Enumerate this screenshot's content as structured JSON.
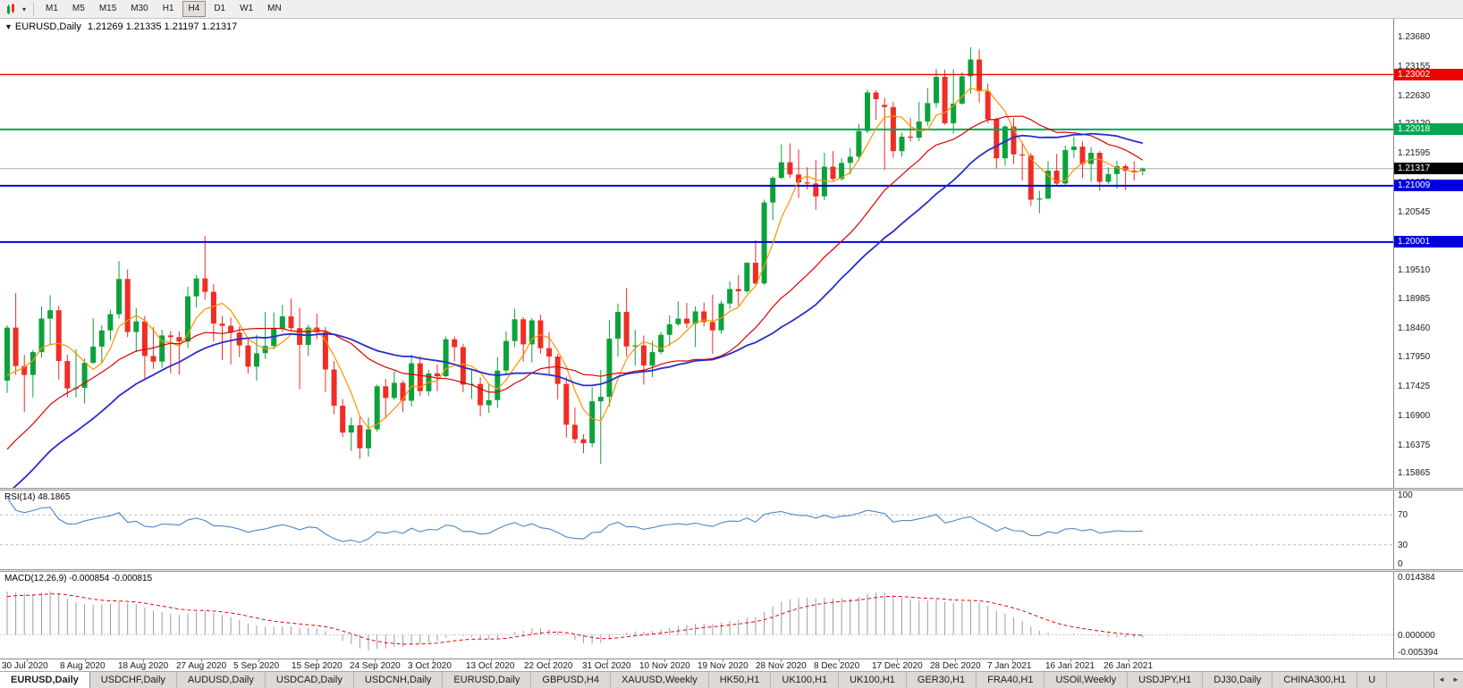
{
  "toolbar": {
    "dropdown_glyph": "▾",
    "timeframes": [
      "M1",
      "M5",
      "M15",
      "M30",
      "H1",
      "H4",
      "D1",
      "W1",
      "MN"
    ],
    "active_timeframe": "H4"
  },
  "main_chart": {
    "collapse_glyph": "▼",
    "title": "EURUSD,Daily",
    "ohlc_text": "1.21269 1.21335 1.21197 1.21317",
    "price_range": {
      "top": 1.24,
      "bottom": 1.156
    },
    "axis_labels": [
      "1.23680",
      "1.23155",
      "1.22630",
      "1.22120",
      "1.21595",
      "1.21070",
      "1.20545",
      "1.20020",
      "1.19510",
      "1.18985",
      "1.18460",
      "1.17950",
      "1.17425",
      "1.16900",
      "1.16375",
      "1.15865"
    ],
    "current_price": {
      "value": 1.21317,
      "label": "1.21317",
      "tag_color": "#000000",
      "line_color": "#ababab"
    },
    "hlines": [
      {
        "value": 1.23002,
        "label": "1.23002",
        "color": "#ee0000",
        "width": 1.4
      },
      {
        "value": 1.22018,
        "label": "1.22018",
        "color": "#00a651",
        "width": 2
      },
      {
        "value": 1.21009,
        "label": "1.21009",
        "color": "#0000dd",
        "width": 2
      },
      {
        "value": 1.20001,
        "label": "1.20001",
        "color": "#0000dd",
        "width": 2
      }
    ],
    "bull_color": "#0ca23a",
    "bear_color": "#ef2d24"
  },
  "chart_data": {
    "type": "candlestick",
    "title": "EURUSD Daily candlestick chart with SMA overlays, RSI(14) and MACD(12,26,9)",
    "symbol": "EURUSD",
    "period": "Daily",
    "ylim": [
      1.156,
      1.24
    ],
    "x_date_labels": [
      "30 Jul 2020",
      "8 Aug 2020",
      "18 Aug 2020",
      "27 Aug 2020",
      "5 Sep 2020",
      "15 Sep 2020",
      "24 Sep 2020",
      "3 Oct 2020",
      "13 Oct 2020",
      "22 Oct 2020",
      "31 Oct 2020",
      "10 Nov 2020",
      "19 Nov 2020",
      "28 Nov 2020",
      "8 Dec 2020",
      "17 Dec 2020",
      "28 Dec 2020",
      "7 Jan 2021",
      "16 Jan 2021",
      "26 Jan 2021"
    ],
    "ohlc": [
      [
        1.1752,
        1.1851,
        1.173,
        1.1847
      ],
      [
        1.1847,
        1.1909,
        1.1762,
        1.1778
      ],
      [
        1.1778,
        1.1798,
        1.1696,
        1.1762
      ],
      [
        1.1762,
        1.1807,
        1.1722,
        1.1803
      ],
      [
        1.1803,
        1.1885,
        1.1793,
        1.1863
      ],
      [
        1.1863,
        1.1905,
        1.1815,
        1.1878
      ],
      [
        1.1878,
        1.1886,
        1.1754,
        1.1787
      ],
      [
        1.1787,
        1.1798,
        1.1722,
        1.1738
      ],
      [
        1.1738,
        1.1808,
        1.1722,
        1.1739
      ],
      [
        1.1739,
        1.1792,
        1.1711,
        1.1784
      ],
      [
        1.1784,
        1.1864,
        1.1782,
        1.1813
      ],
      [
        1.1813,
        1.1851,
        1.1783,
        1.1842
      ],
      [
        1.1842,
        1.1879,
        1.1824,
        1.1871
      ],
      [
        1.1871,
        1.1966,
        1.1863,
        1.1934
      ],
      [
        1.1934,
        1.1951,
        1.183,
        1.1839
      ],
      [
        1.1839,
        1.1882,
        1.1803,
        1.1858
      ],
      [
        1.1858,
        1.1868,
        1.1753,
        1.1796
      ],
      [
        1.1796,
        1.1848,
        1.1773,
        1.1786
      ],
      [
        1.1786,
        1.1843,
        1.1775,
        1.1833
      ],
      [
        1.1833,
        1.1841,
        1.1765,
        1.183
      ],
      [
        1.183,
        1.184,
        1.1763,
        1.1822
      ],
      [
        1.1822,
        1.192,
        1.181,
        1.1903
      ],
      [
        1.1903,
        1.1941,
        1.1883,
        1.1935
      ],
      [
        1.1935,
        1.2011,
        1.1897,
        1.1911
      ],
      [
        1.1911,
        1.1925,
        1.1822,
        1.1854
      ],
      [
        1.1854,
        1.1868,
        1.1789,
        1.185
      ],
      [
        1.185,
        1.1865,
        1.1781,
        1.1838
      ],
      [
        1.1838,
        1.1849,
        1.1794,
        1.1815
      ],
      [
        1.1815,
        1.1827,
        1.1765,
        1.1777
      ],
      [
        1.1777,
        1.1834,
        1.1752,
        1.1801
      ],
      [
        1.1801,
        1.1875,
        1.1791,
        1.1814
      ],
      [
        1.1814,
        1.1874,
        1.1808,
        1.1845
      ],
      [
        1.1845,
        1.1888,
        1.1839,
        1.1867
      ],
      [
        1.1867,
        1.1899,
        1.1841,
        1.1846
      ],
      [
        1.1846,
        1.1882,
        1.1737,
        1.1816
      ],
      [
        1.1816,
        1.1852,
        1.1796,
        1.1847
      ],
      [
        1.1847,
        1.1872,
        1.1826,
        1.1839
      ],
      [
        1.1839,
        1.1848,
        1.1732,
        1.1772
      ],
      [
        1.1772,
        1.1787,
        1.1692,
        1.1707
      ],
      [
        1.1707,
        1.1719,
        1.1651,
        1.1659
      ],
      [
        1.1659,
        1.1686,
        1.1626,
        1.1672
      ],
      [
        1.1672,
        1.1689,
        1.1612,
        1.1631
      ],
      [
        1.1631,
        1.1686,
        1.1616,
        1.1665
      ],
      [
        1.1665,
        1.1745,
        1.1661,
        1.1742
      ],
      [
        1.1742,
        1.1755,
        1.1684,
        1.1721
      ],
      [
        1.1721,
        1.1769,
        1.1717,
        1.1748
      ],
      [
        1.1748,
        1.1752,
        1.1695,
        1.1716
      ],
      [
        1.1716,
        1.1798,
        1.1706,
        1.1783
      ],
      [
        1.1783,
        1.1796,
        1.1724,
        1.1733
      ],
      [
        1.1733,
        1.1771,
        1.1725,
        1.1765
      ],
      [
        1.1765,
        1.1781,
        1.1733,
        1.176
      ],
      [
        1.176,
        1.1831,
        1.1758,
        1.1826
      ],
      [
        1.1826,
        1.1831,
        1.1786,
        1.1812
      ],
      [
        1.1812,
        1.1818,
        1.1731,
        1.1745
      ],
      [
        1.1745,
        1.1772,
        1.1719,
        1.1746
      ],
      [
        1.1746,
        1.1758,
        1.1688,
        1.1708
      ],
      [
        1.1708,
        1.1746,
        1.1694,
        1.1717
      ],
      [
        1.1717,
        1.1794,
        1.1703,
        1.177
      ],
      [
        1.177,
        1.184,
        1.1762,
        1.1823
      ],
      [
        1.1823,
        1.1881,
        1.1812,
        1.1862
      ],
      [
        1.1862,
        1.1866,
        1.1786,
        1.1817
      ],
      [
        1.1817,
        1.1864,
        1.1785,
        1.186
      ],
      [
        1.186,
        1.187,
        1.18,
        1.181
      ],
      [
        1.181,
        1.1839,
        1.1763,
        1.1795
      ],
      [
        1.1795,
        1.18,
        1.1718,
        1.1746
      ],
      [
        1.1746,
        1.1759,
        1.165,
        1.1673
      ],
      [
        1.1673,
        1.1704,
        1.164,
        1.1647
      ],
      [
        1.1647,
        1.1656,
        1.1622,
        1.164
      ],
      [
        1.164,
        1.174,
        1.1633,
        1.1715
      ],
      [
        1.1715,
        1.1771,
        1.1603,
        1.1723
      ],
      [
        1.1723,
        1.186,
        1.1706,
        1.1827
      ],
      [
        1.1827,
        1.189,
        1.1795,
        1.1875
      ],
      [
        1.1875,
        1.1918,
        1.1795,
        1.1813
      ],
      [
        1.1813,
        1.1843,
        1.1779,
        1.1815
      ],
      [
        1.1815,
        1.1833,
        1.1745,
        1.1779
      ],
      [
        1.1779,
        1.1823,
        1.1758,
        1.1803
      ],
      [
        1.1803,
        1.1839,
        1.1799,
        1.1834
      ],
      [
        1.1834,
        1.1869,
        1.1814,
        1.1853
      ],
      [
        1.1853,
        1.1894,
        1.185,
        1.1863
      ],
      [
        1.1863,
        1.1891,
        1.1846,
        1.1854
      ],
      [
        1.1854,
        1.1885,
        1.1812,
        1.1876
      ],
      [
        1.1876,
        1.1892,
        1.1849,
        1.1857
      ],
      [
        1.1857,
        1.1906,
        1.18,
        1.1842
      ],
      [
        1.1842,
        1.1895,
        1.1836,
        1.189
      ],
      [
        1.189,
        1.193,
        1.1881,
        1.1916
      ],
      [
        1.1916,
        1.1941,
        1.1886,
        1.1912
      ],
      [
        1.1912,
        1.1964,
        1.1909,
        1.1963
      ],
      [
        1.1963,
        1.2003,
        1.1924,
        1.1926
      ],
      [
        1.1926,
        1.2076,
        1.1923,
        1.2071
      ],
      [
        1.2071,
        1.2118,
        1.204,
        1.2115
      ],
      [
        1.2115,
        1.2175,
        1.2113,
        1.2143
      ],
      [
        1.2143,
        1.2177,
        1.2115,
        1.2121
      ],
      [
        1.2121,
        1.2166,
        1.2079,
        1.2107
      ],
      [
        1.2107,
        1.2134,
        1.2094,
        1.2105
      ],
      [
        1.2105,
        1.2147,
        1.2058,
        1.2082
      ],
      [
        1.2082,
        1.216,
        1.2075,
        1.2135
      ],
      [
        1.2135,
        1.2163,
        1.211,
        1.2113
      ],
      [
        1.2113,
        1.215,
        1.211,
        1.2142
      ],
      [
        1.2142,
        1.2169,
        1.2121,
        1.2153
      ],
      [
        1.2153,
        1.2212,
        1.2146,
        1.2199
      ],
      [
        1.2199,
        1.2273,
        1.2195,
        1.2268
      ],
      [
        1.2268,
        1.2272,
        1.2219,
        1.2256
      ],
      [
        1.2246,
        1.2258,
        1.2129,
        1.2242
      ],
      [
        1.2242,
        1.2251,
        1.2151,
        1.2163
      ],
      [
        1.2163,
        1.2196,
        1.2153,
        1.2189
      ],
      [
        1.2189,
        1.2222,
        1.218,
        1.2187
      ],
      [
        1.2187,
        1.2251,
        1.2181,
        1.2216
      ],
      [
        1.2216,
        1.2276,
        1.2208,
        1.2249
      ],
      [
        1.2249,
        1.231,
        1.2241,
        1.2296
      ],
      [
        1.2296,
        1.2309,
        1.221,
        1.2213
      ],
      [
        1.2213,
        1.231,
        1.2194,
        1.2248
      ],
      [
        1.2248,
        1.2304,
        1.2246,
        1.2297
      ],
      [
        1.2297,
        1.2349,
        1.2266,
        1.2327
      ],
      [
        1.2327,
        1.2345,
        1.225,
        1.227
      ],
      [
        1.227,
        1.2284,
        1.2213,
        1.222
      ],
      [
        1.222,
        1.2223,
        1.2132,
        1.215
      ],
      [
        1.215,
        1.221,
        1.2137,
        1.2207
      ],
      [
        1.2207,
        1.2222,
        1.214,
        1.2157
      ],
      [
        1.2157,
        1.2178,
        1.211,
        1.2155
      ],
      [
        1.2155,
        1.216,
        1.2065,
        1.2076
      ],
      [
        1.2076,
        1.2092,
        1.2052,
        1.2078
      ],
      [
        1.2078,
        1.2145,
        1.2077,
        1.2128
      ],
      [
        1.2128,
        1.2158,
        1.2101,
        1.2105
      ],
      [
        1.2105,
        1.2173,
        1.2103,
        1.2165
      ],
      [
        1.2165,
        1.2189,
        1.2151,
        1.2171
      ],
      [
        1.2171,
        1.218,
        1.2115,
        1.214
      ],
      [
        1.214,
        1.217,
        1.2108,
        1.216
      ],
      [
        1.216,
        1.2163,
        1.2092,
        1.2108
      ],
      [
        1.2108,
        1.2134,
        1.2104,
        1.2122
      ],
      [
        1.2122,
        1.2146,
        1.2096,
        1.2136
      ],
      [
        1.2136,
        1.214,
        1.2093,
        1.2128
      ],
      [
        1.2128,
        1.2145,
        1.211,
        1.2127
      ],
      [
        1.21269,
        1.21335,
        1.21197,
        1.21317
      ]
    ],
    "prehistory_closes": [
      1.13,
      1.132,
      1.1345,
      1.134,
      1.136,
      1.1385,
      1.1405,
      1.1395,
      1.142,
      1.144,
      1.146,
      1.1452,
      1.1478,
      1.15,
      1.1518,
      1.1535,
      1.1555,
      1.1548,
      1.1575,
      1.1595,
      1.1625,
      1.1645,
      1.1665,
      1.169,
      1.1682,
      1.171,
      1.174,
      1.1728,
      1.174,
      1.1752
    ],
    "moving_averages": [
      {
        "period": 5,
        "method": "sma",
        "color": "#ff9300",
        "width": 1.2
      },
      {
        "period": 20,
        "method": "sma",
        "color": "#dc0000",
        "width": 1.2
      },
      {
        "period": 30,
        "method": "sma",
        "color": "#2a2ec9",
        "width": 1.8
      }
    ],
    "indicators": {
      "rsi": {
        "period": 14,
        "current": "48.1865"
      },
      "macd": {
        "fast": 12,
        "slow": 26,
        "signal": 9,
        "current_main": "-0.000854",
        "current_signal": "-0.000815"
      }
    }
  },
  "rsi_panel": {
    "label": "RSI(14) 48.1865",
    "line_color": "#4a86c8",
    "levels": [
      "100",
      "70",
      "30",
      "0"
    ],
    "level_lines": [
      70,
      30
    ],
    "range": [
      0,
      100
    ]
  },
  "macd_panel": {
    "label": "MACD(12,26,9) -0.000854 -0.000815",
    "axis_labels": [
      "0.014384",
      "0.000000",
      "-0.005394"
    ],
    "range": [
      -0.005394,
      0.014384
    ],
    "histogram_color": "#9d9d9d",
    "signal_color": "#e60000"
  },
  "date_axis": {
    "labels": [
      "30 Jul 2020",
      "8 Aug 2020",
      "18 Aug 2020",
      "27 Aug 2020",
      "5 Sep 2020",
      "15 Sep 2020",
      "24 Sep 2020",
      "3 Oct 2020",
      "13 Oct 2020",
      "22 Oct 2020",
      "31 Oct 2020",
      "10 Nov 2020",
      "19 Nov 2020",
      "28 Nov 2020",
      "8 Dec 2020",
      "17 Dec 2020",
      "28 Dec 2020",
      "7 Jan 2021",
      "16 Jan 2021",
      "26 Jan 2021"
    ]
  },
  "tab_bar": {
    "tabs": [
      "EURUSD,Daily",
      "USDCHF,Daily",
      "AUDUSD,Daily",
      "USDCAD,Daily",
      "USDCNH,Daily",
      "EURUSD,Daily",
      "GBPUSD,H4",
      "XAUUSD,Weekly",
      "HK50,H1",
      "UK100,H1",
      "UK100,H1",
      "GER30,H1",
      "FRA40,H1",
      "USOil,Weekly",
      "USDJPY,H1",
      "DJ30,Daily",
      "CHINA300,H1",
      "U"
    ],
    "active_index": 0,
    "scroll_left_glyph": "◄",
    "scroll_right_glyph": "►"
  }
}
